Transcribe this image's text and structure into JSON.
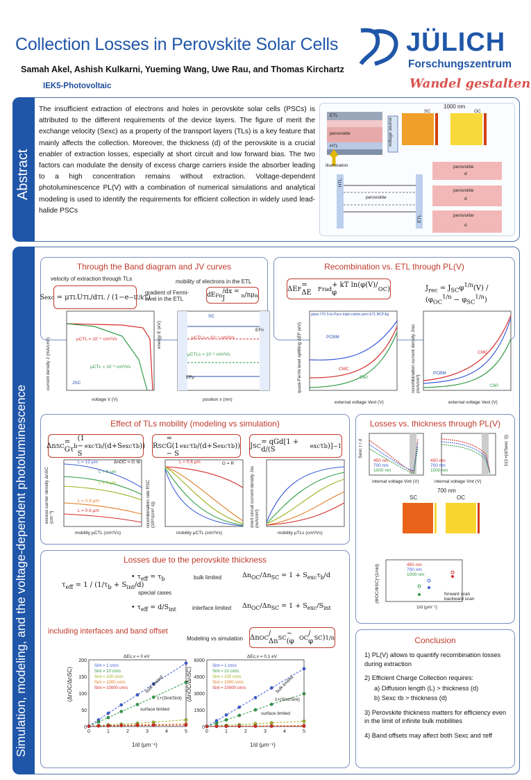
{
  "header": {
    "title": "Collection Losses in Perovskite Solar Cells",
    "authors": "Samah Akel, Ashish Kulkarni, Yueming Wang, Uwe Rau, and Thomas Kirchartz",
    "institute": "IEK5-Photovoltaic",
    "logo_word": "JÜLICH",
    "logo_sub": "Forschungszentrum",
    "tagline": "Wandel gestalten"
  },
  "abstract": {
    "label": "Abstract",
    "text": "The insufficient extraction of electrons and holes in perovskite solar cells (PSCs) is attributed to the different requirements of the device layers. The figure of merit the exchange velocity (Sexc) as a property of the transport layers (TLs) is a key feature that mainly affects the collection. Moreover, the thickness (d) of the perovskite is a crucial enabler of extraction losses, especially at short circuit and low forward bias. The two factors can modulate the density of excess charge carriers inside the absorber leading to a high concentration remains without extraction. Voltage-dependent photoluminescence PL(V) with a combination of numerical simulations and analytical modeling is used to identify the requirements for efficient collection in widely used lead-halide PSCs",
    "fig_nm": "1000 nm",
    "fig_sc": "SC",
    "fig_oc": "OC",
    "layer_etl": "ETL",
    "layer_perovskite": "perovskite",
    "layer_htl": "HTL",
    "voltage_source": "voltage source",
    "illumination": "illumination",
    "band_htl": "HTL",
    "band_perovskite": "perovskite",
    "band_etl": "ETL",
    "thick_label": "perovskite",
    "thick_d": "d"
  },
  "main_label": "Simulation, modeling, and the voltage-dependent photoluminescence",
  "band_jv": {
    "title": "Through the Band diagram and JV curves",
    "sub_left": "velocity of extraction through TLs",
    "sub_right": "mobility of electrons in the ETL",
    "gradient_text": "gradient of Fermi-level in the ETL",
    "jv_ylabel": "current density J (mA/cm²)",
    "jv_xlabel": "voltage V (V)",
    "jv_mu_high": "μCTL = 10⁻⁴ cm²/Vs",
    "jv_mu_low": "μCTL = 10⁻² cm²/Vs",
    "jv_jsc": "JSC",
    "band_ylabel": "energy E (eV)",
    "band_xlabel": "position x (nm)",
    "band_sc": "SC",
    "band_mu1": "μCTLs = 10⁻⁴ cm²/Vs",
    "band_mu2": "μCTLs = 10⁻² cm²/Vs",
    "band_efn": "EFn",
    "band_efp": "EFp"
  },
  "recomb": {
    "title": "Recombination vs. ETL through PL(V)",
    "p1_ylabel": "quasi-Fermi level splitting ΔEF (eV)",
    "p1_xlabel": "external voltage Vext (V)",
    "p1_legend": "glass ITO 5-Ie-Pacz triple-cation-pero ETL BCP Ag",
    "p1_pcbm": "PCBM",
    "p1_cmc": "CMC",
    "p1_c60": "C60",
    "p2_ylabel": "recombination current density Jrec (mA/cm²)",
    "p2_xlabel": "external voltage Vext (V)"
  },
  "mobility": {
    "title": "Effect of TLs mobility (modeling vs simulation)",
    "p1_ylabel": "excess carrier density ΔnSC (cm⁻³)",
    "p1_xlabel": "mobility μCTL (cm²/Vs)",
    "p1_tag": "ΔnOC = G τb",
    "p2_ylabel": "recombination rate RSC (10²¹/(cm³ s))",
    "p2_xlabel": "mobility μCTL (cm²/Vs)",
    "p2_tag": "G = R",
    "p3_ylabel": "short circuit current density Jsc (mA/cm²)",
    "p3_xlabel": "mobility μTLs (cm²/Vs)",
    "lbl_12": "L = 12 μm",
    "lbl_6": "L = 6 μm",
    "lbl_3": "L = 3 μm",
    "lbl_09": "L = 0.9 μm",
    "lbl_06": "L = 0.6 μm"
  },
  "thickness_pl": {
    "title": "Losses vs. thickness through PL(V)",
    "p1_ylabel": "Sexc τ / d",
    "p1_xlabel": "internal voltage Vint (V)",
    "p2_ylabel": "1/(1+(d/Sexc τ))",
    "p2_xlabel": "internal voltage Vint (V)",
    "legend_450": "450 nm",
    "legend_700": "700 nm",
    "legend_1000": "1000 nm",
    "map_nm": "700 nm",
    "map_sc": "SC",
    "map_oc": "OC",
    "scat_ylabel": "(ΦOC/ΦSC)^(1/nid)",
    "scat_xlabel": "1/d (μm⁻¹)",
    "forward": "forward scan",
    "backward": "backward scan"
  },
  "thickness": {
    "title": "Losses due to the perovskite thickness",
    "bulk_limited": "bulk limited",
    "special_cases": "special cases",
    "interface_limited": "interface limited",
    "sub": "including interfaces and band offset",
    "modeling": "Modeling vs simulation"
  },
  "offset_charts": {
    "left_title": "ΔEc,v = 0 eV",
    "right_title": "ΔEc,v = 0.1 eV",
    "ylabel": "(ΔnOC/ΔnSC)",
    "xlabel": "1/d (μm⁻¹)",
    "bulk": "bulk limited",
    "surface": "surface limited",
    "ratio": "1+(Sint/Sint)"
  },
  "conclusion": {
    "title": "Conclusion",
    "p1": "1) PL(V) allows to quantify recombination losses during extraction",
    "p2": "2) Efficient Charge Collection requires:",
    "p2a": "a)  Diffusion length (L) > thickness (d)",
    "p2b": "b)  Sexc τb > thickness (d)",
    "p3": "3) Perovskite thickness matters for efficiency even in the limit of infinite bulk mobilities",
    "p4": "4) Band offsets may affect both Sexc and τeff"
  },
  "chart_data": [
    {
      "type": "line",
      "title": "ΔEc,v = 0 eV",
      "xlabel": "1/d (μm⁻¹)",
      "ylabel": "(ΔnOC/ΔnSC)",
      "xlim": [
        0,
        5
      ],
      "ylim": [
        0,
        200
      ],
      "x": [
        0,
        0.5,
        1,
        1.67,
        2.5,
        3.33,
        5
      ],
      "series": [
        {
          "name": "Sint = 1 cm/s",
          "color": "#3a5bd9",
          "values": [
            1,
            20,
            40,
            65,
            95,
            128,
            190
          ]
        },
        {
          "name": "Sint = 10 cm/s",
          "color": "#2e9a45",
          "values": [
            1,
            14,
            27,
            45,
            66,
            88,
            133
          ]
        },
        {
          "name": "Sint = 100 cm/s",
          "color": "#9fb020",
          "values": [
            1,
            3,
            5,
            7,
            10,
            13,
            20
          ]
        },
        {
          "name": "Sint = 1000 cm/s",
          "color": "#e07b22",
          "values": [
            1,
            2,
            3,
            4,
            5,
            6,
            8
          ]
        },
        {
          "name": "Sint = 10000 cm/s",
          "color": "#d62a2a",
          "values": [
            1,
            1.5,
            2,
            2.5,
            3,
            3.5,
            4
          ]
        }
      ]
    },
    {
      "type": "line",
      "title": "ΔEc,v = 0.1 eV",
      "xlabel": "1/d (μm⁻¹)",
      "ylabel": "(ΔnOC/ΔnSC)",
      "xlim": [
        0,
        5
      ],
      "ylim": [
        0,
        6000
      ],
      "x": [
        0,
        0.5,
        1,
        1.67,
        2.5,
        3.33,
        5
      ],
      "series": [
        {
          "name": "Sint = 1 cm/s",
          "color": "#3a5bd9",
          "values": [
            10,
            520,
            1040,
            1740,
            2600,
            3470,
            5200
          ]
        },
        {
          "name": "Sint = 10 cm/s",
          "color": "#2e9a45",
          "values": [
            10,
            300,
            600,
            1000,
            1500,
            2000,
            2950
          ]
        },
        {
          "name": "Sint = 100 cm/s",
          "color": "#9fb020",
          "values": [
            10,
            60,
            110,
            170,
            250,
            330,
            480
          ]
        },
        {
          "name": "Sint = 1000 cm/s",
          "color": "#e07b22",
          "values": [
            10,
            20,
            30,
            40,
            55,
            70,
            100
          ]
        },
        {
          "name": "Sint = 10000 cm/s",
          "color": "#d62a2a",
          "values": [
            10,
            12,
            14,
            16,
            18,
            20,
            25
          ]
        }
      ]
    }
  ],
  "colors": {
    "brand_blue": "#1f56a8",
    "accent_red": "#c0392b"
  }
}
